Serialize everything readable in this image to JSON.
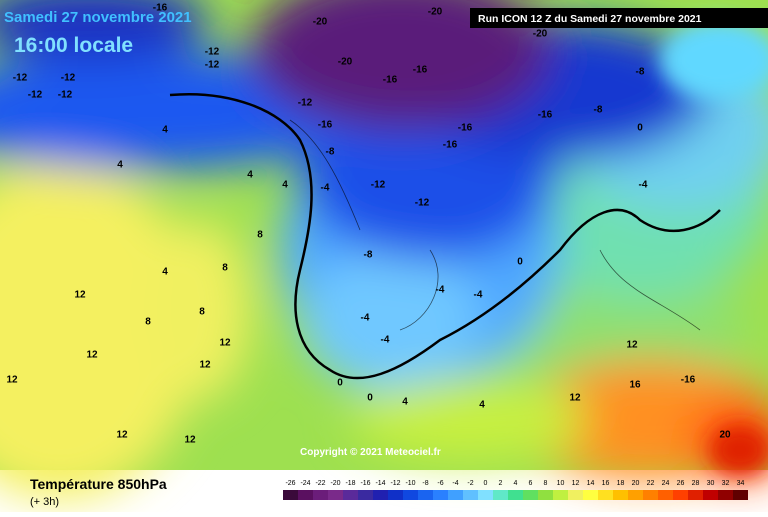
{
  "header": {
    "date": "Samedi 27 novembre 2021",
    "time": "16:00 locale",
    "run": "Run ICON 12 Z du Samedi 27 novembre 2021"
  },
  "copyright": "Copyright © 2021 Meteociel.fr",
  "footer": {
    "title": "Température 850hPa",
    "step": "(+ 3h)"
  },
  "scale": {
    "ticks": [
      -26,
      -24,
      -22,
      -20,
      -18,
      -16,
      -14,
      -12,
      -10,
      -8,
      -6,
      -4,
      -2,
      0,
      2,
      4,
      6,
      8,
      10,
      12,
      14,
      16,
      18,
      20,
      22,
      24,
      26,
      28,
      30,
      32,
      34
    ],
    "colors": [
      "#3a0a3a",
      "#5a1060",
      "#6b1d7a",
      "#7a2a8a",
      "#5a2a9a",
      "#3a2aa0",
      "#2020b0",
      "#1030c8",
      "#1048e0",
      "#1a64f0",
      "#2a80ff",
      "#40a0ff",
      "#60c0ff",
      "#80e0ff",
      "#60e8c8",
      "#40e090",
      "#60e060",
      "#90e040",
      "#c0f040",
      "#f0f060",
      "#ffff40",
      "#ffe020",
      "#ffc000",
      "#ffa000",
      "#ff8000",
      "#ff6000",
      "#ff4000",
      "#e02000",
      "#c00000",
      "#900000",
      "#600000"
    ]
  },
  "map_labels": [
    -12,
    -12,
    -12,
    -12,
    -16,
    -20,
    -12,
    -12,
    -20,
    -16,
    -16,
    -20,
    -20,
    -16,
    -8,
    -8,
    -16,
    -16,
    -12,
    -12,
    -16,
    -12,
    -8,
    -8,
    -4,
    -4,
    -4,
    -4,
    -4,
    0,
    -4,
    0,
    12,
    12,
    12,
    12,
    8,
    12,
    12,
    8,
    4,
    8,
    4,
    4,
    8,
    12,
    4,
    4,
    16,
    -16,
    20,
    12,
    12,
    4,
    0,
    0,
    4
  ]
}
